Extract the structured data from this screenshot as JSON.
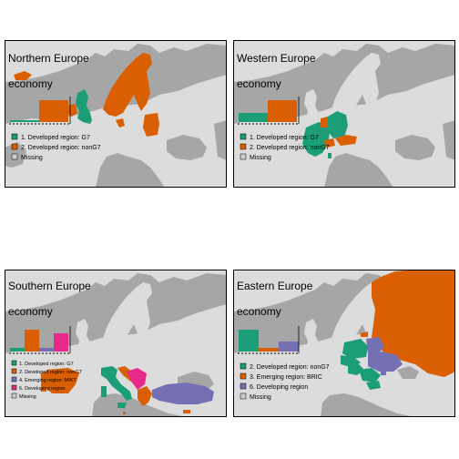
{
  "colors": {
    "sea": "#a6a6a6",
    "land": "#dcdcdc",
    "g7": "#1b9e77",
    "nong7": "#d95f02",
    "emerging_mikt": "#7570b3",
    "emerging_bric": "#d95f02",
    "developing": "#7570b3",
    "missing": "#cccccc",
    "pink": "#e7298a"
  },
  "panels": [
    {
      "title": "Northern Europe",
      "subtitle": "economy",
      "legend": [
        {
          "label": "1. Developed region: G7",
          "color": "#1b9e77"
        },
        {
          "label": "2. Developed region: nonG7",
          "color": "#d95f02"
        },
        {
          "label": "Missing",
          "color": "#cccccc"
        }
      ],
      "histogram": [
        {
          "color": "#1b9e77",
          "value": 0.08
        },
        {
          "color": "#d95f02",
          "value": 1.0
        }
      ]
    },
    {
      "title": "Western Europe",
      "subtitle": "economy",
      "legend": [
        {
          "label": "1. Developed region: G7",
          "color": "#1b9e77"
        },
        {
          "label": "2. Developed region: nonG7",
          "color": "#d95f02"
        },
        {
          "label": "Missing",
          "color": "#cccccc"
        }
      ],
      "histogram": [
        {
          "color": "#1b9e77",
          "value": 0.42
        },
        {
          "color": "#d95f02",
          "value": 1.0
        }
      ]
    },
    {
      "title": "Southern Europe",
      "subtitle": "economy",
      "legend": [
        {
          "label": "1. Developed region: G7",
          "color": "#1b9e77"
        },
        {
          "label": "2. Developed region: nonG7",
          "color": "#d95f02"
        },
        {
          "label": "4. Emerging region: MIKT",
          "color": "#7570b3"
        },
        {
          "label": "6. Developing region",
          "color": "#e7298a"
        },
        {
          "label": "Missing",
          "color": "#cccccc"
        }
      ],
      "histogram": [
        {
          "color": "#1b9e77",
          "value": 0.17
        },
        {
          "color": "#d95f02",
          "value": 1.0
        },
        {
          "color": "#7570b3",
          "value": 0.17
        },
        {
          "color": "#e7298a",
          "value": 0.85
        }
      ]
    },
    {
      "title": "Eastern Europe",
      "subtitle": "economy",
      "legend": [
        {
          "label": "2. Developed region: nonG7",
          "color": "#1b9e77"
        },
        {
          "label": "3. Emerging region: BRIC",
          "color": "#d95f02"
        },
        {
          "label": "6. Developing region",
          "color": "#7570b3"
        },
        {
          "label": "Missing",
          "color": "#cccccc"
        }
      ],
      "histogram": [
        {
          "color": "#1b9e77",
          "value": 1.0
        },
        {
          "color": "#d95f02",
          "value": 0.15
        },
        {
          "color": "#7570b3",
          "value": 0.45
        }
      ]
    }
  ]
}
